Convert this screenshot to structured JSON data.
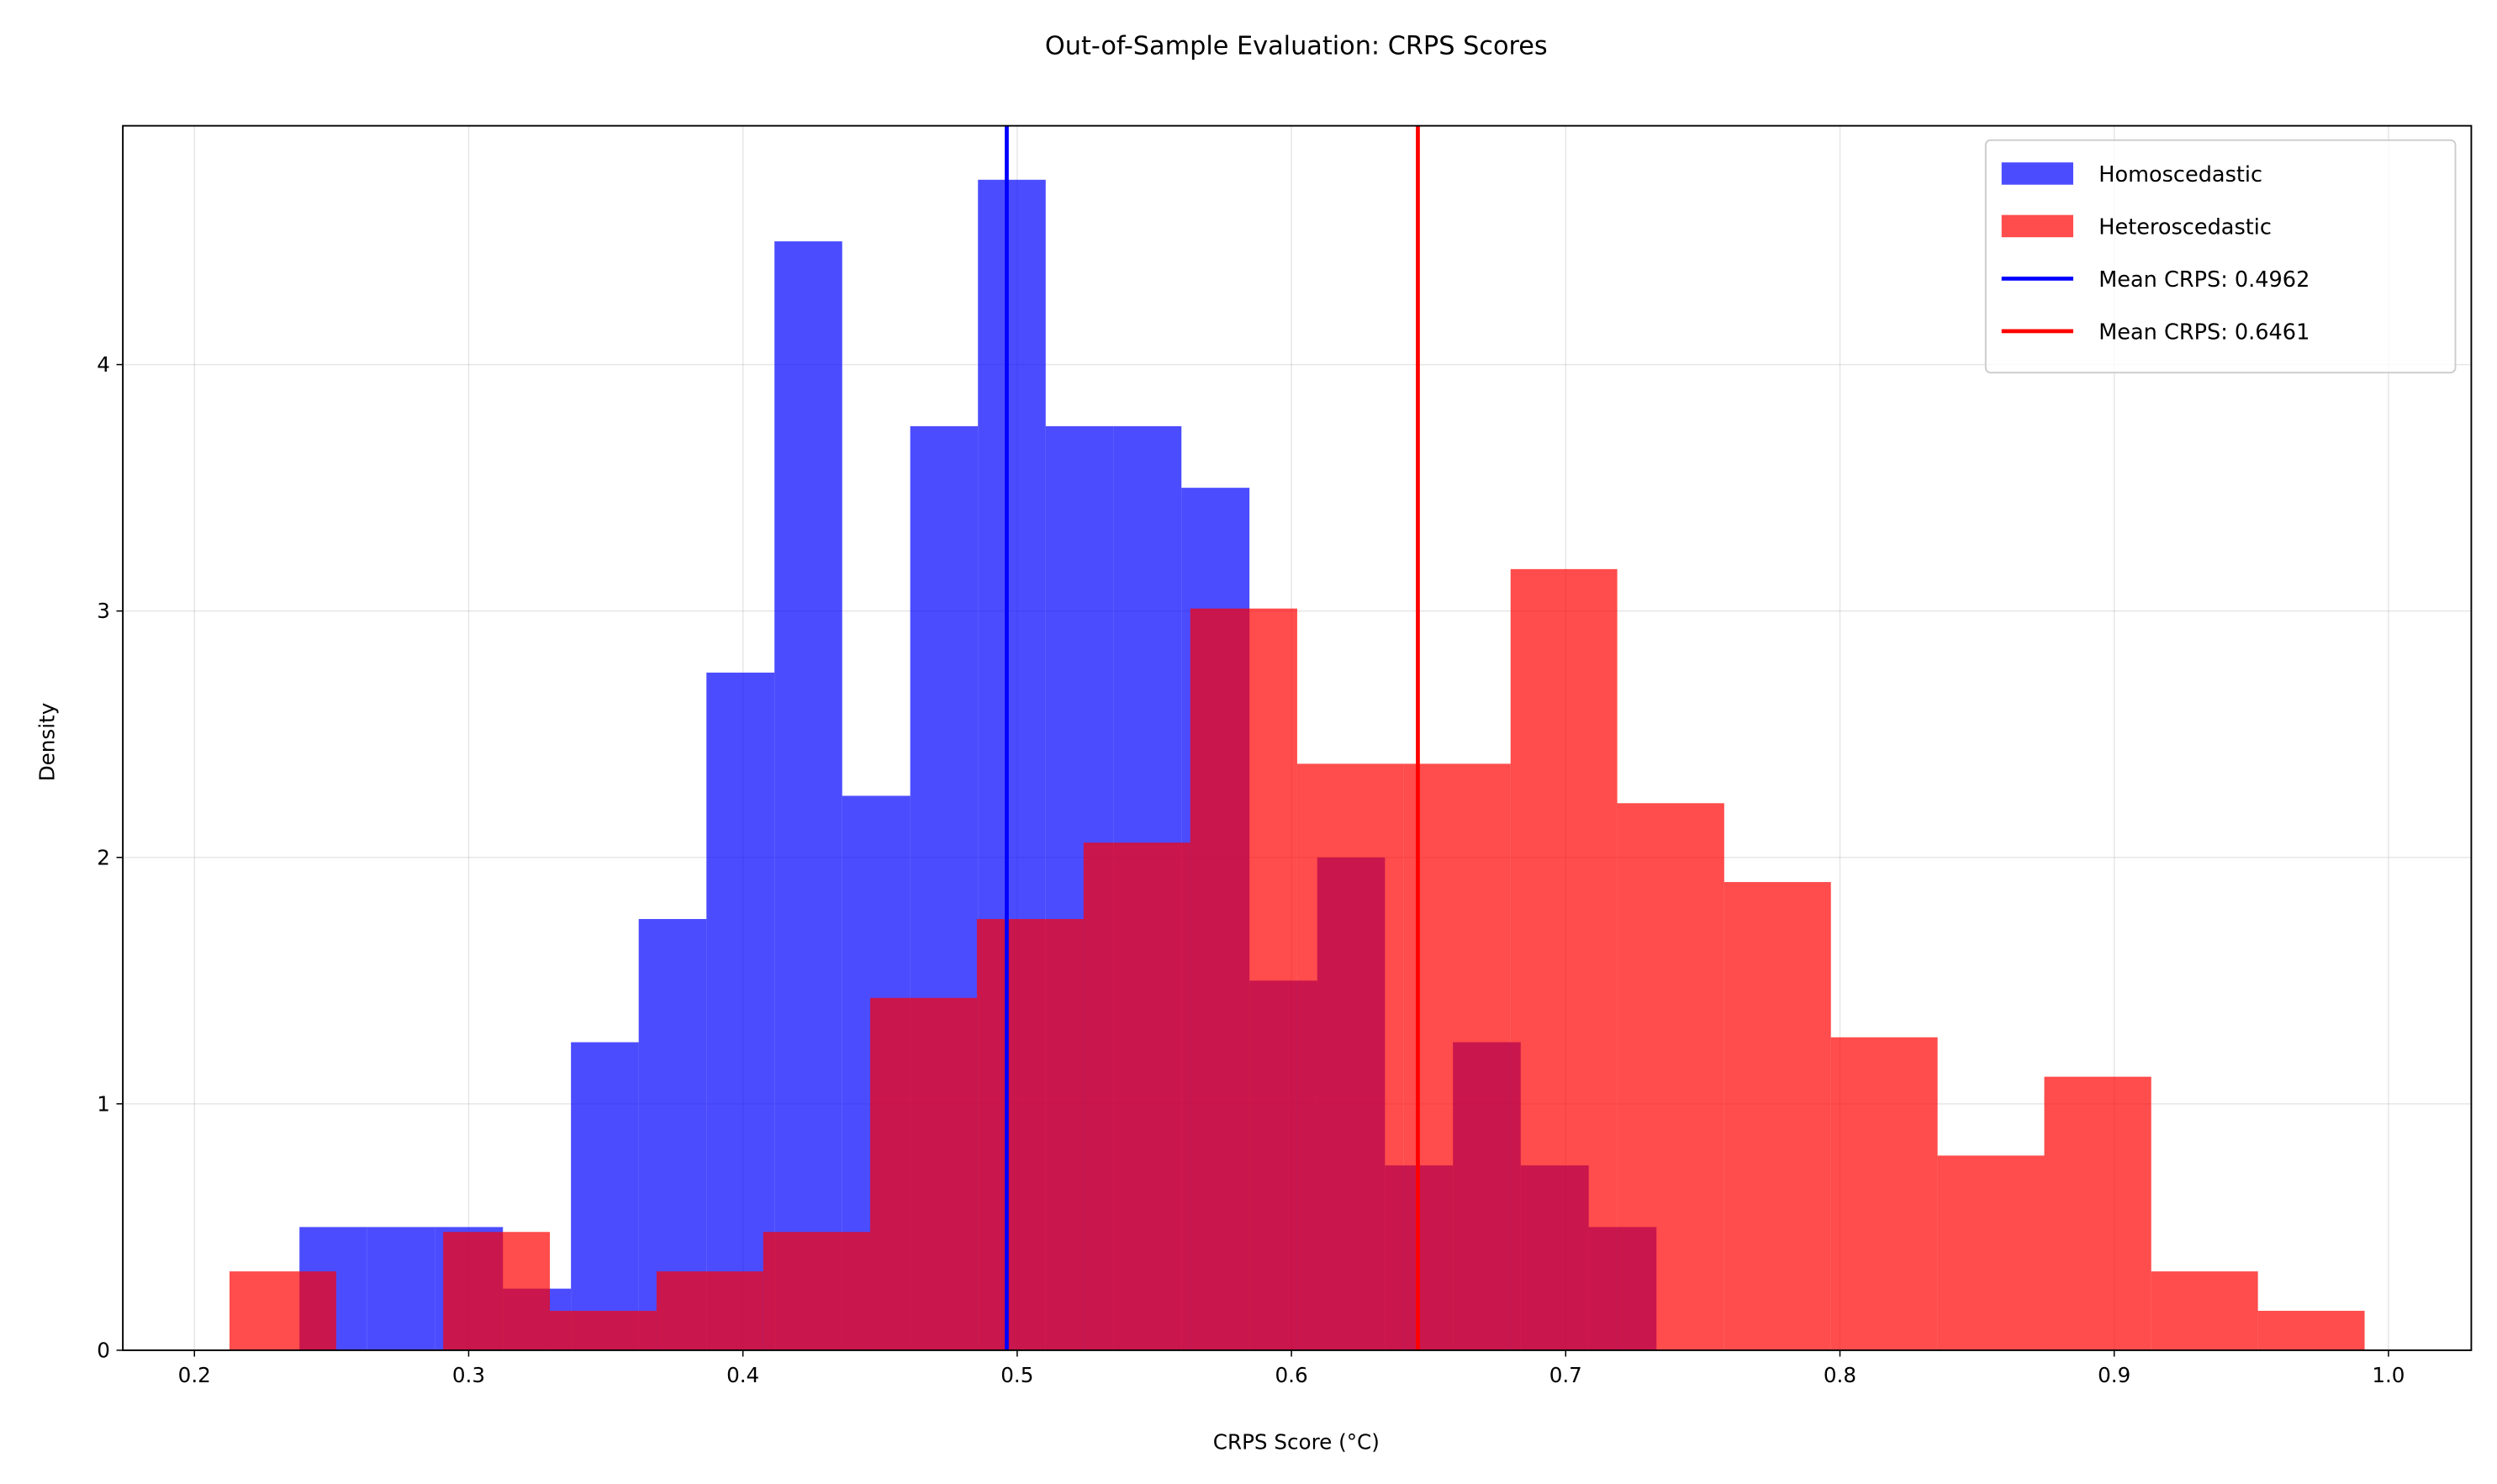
{
  "chart_data": {
    "type": "histogram",
    "title": "Out-of-Sample Evaluation: CRPS Scores",
    "x_label": "CRPS Score (°C)",
    "y_label": "Density",
    "xlim": [
      0.1739,
      1.0302
    ],
    "ylim": [
      0,
      4.969
    ],
    "xticks": [
      0.2,
      0.3,
      0.4,
      0.5,
      0.6,
      0.7,
      0.8,
      0.9,
      {
        "value": 1.0,
        "label": "1.0"
      }
    ],
    "yticks": [
      0,
      1,
      2,
      3,
      4
    ],
    "grid": true,
    "legend_position": "upper right",
    "opacity": 0.7,
    "series": [
      {
        "name": "Homoscedastic",
        "color": "#0000ff",
        "bins": [
          0.2383,
          0.263,
          0.2878,
          0.3125,
          0.3373,
          0.362,
          0.3867,
          0.4115,
          0.4362,
          0.461,
          0.4857,
          0.5104,
          0.5352,
          0.5599,
          0.5847,
          0.6094,
          0.6341,
          0.6589,
          0.6836,
          0.7084,
          0.7331
        ],
        "values": [
          0.5,
          0.5,
          0.5,
          0.25,
          1.25,
          1.75,
          2.75,
          4.5,
          2.25,
          3.75,
          4.75,
          3.75,
          3.75,
          3.5,
          1.5,
          2.0,
          0.75,
          1.25,
          0.75,
          0.5
        ]
      },
      {
        "name": "Heteroscedastic",
        "color": "#ff0000",
        "bins": [
          0.2128,
          0.2517,
          0.2907,
          0.3296,
          0.3685,
          0.4074,
          0.4464,
          0.4853,
          0.5242,
          0.5631,
          0.6021,
          0.641,
          0.6799,
          0.7188,
          0.7578,
          0.7967,
          0.8356,
          0.8745,
          0.9135,
          0.9524,
          0.9913
        ],
        "values": [
          0.32,
          0,
          0.48,
          0.16,
          0.32,
          0.48,
          1.43,
          1.75,
          2.06,
          3.01,
          2.38,
          2.38,
          3.17,
          2.22,
          1.9,
          1.27,
          0.79,
          1.11,
          0.32,
          0.16
        ]
      }
    ],
    "lines": [
      {
        "name": "Mean CRPS: 0.4962",
        "color": "#0000ff",
        "value": 0.4962
      },
      {
        "name": "Mean CRPS: 0.6461",
        "color": "#ff0000",
        "value": 0.6461
      }
    ]
  }
}
